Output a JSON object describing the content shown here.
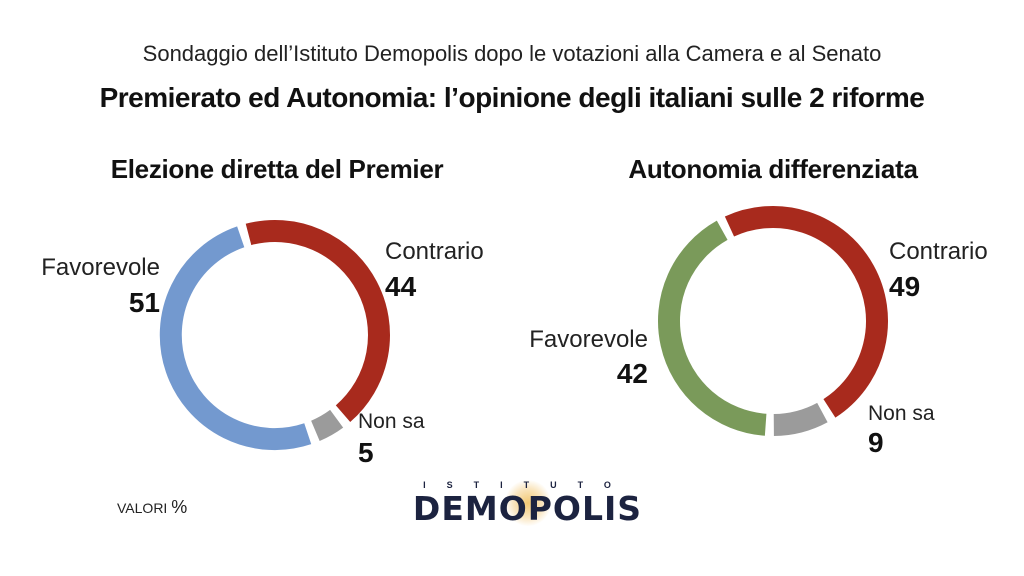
{
  "header": {
    "subtitle": "Sondaggio dell’Istituto Demopolis dopo le votazioni alla Camera e al Senato",
    "title": "Premierato ed Autonomia: l’opinione degli italiani sulle 2 riforme"
  },
  "chart_data": [
    {
      "type": "pie",
      "variant": "donut",
      "title": "Elezione diretta del Premier",
      "slices": [
        {
          "label": "Contrario",
          "value": 44,
          "color": "#a82a1d"
        },
        {
          "label": "Non sa",
          "value": 5,
          "color": "#9b9b9b"
        },
        {
          "label": "Favorevole",
          "value": 51,
          "color": "#7399cf"
        }
      ]
    },
    {
      "type": "pie",
      "variant": "donut",
      "title": "Autonomia differenziata",
      "slices": [
        {
          "label": "Contrario",
          "value": 49,
          "color": "#a82a1d"
        },
        {
          "label": "Non sa",
          "value": 9,
          "color": "#9b9b9b"
        },
        {
          "label": "Favorevole",
          "value": 42,
          "color": "#7a9a5a"
        }
      ]
    }
  ],
  "footer": {
    "note": "VALORI",
    "note_unit": "%",
    "logo_sup": "ISTITUTO",
    "logo_main": "DEMOPOLIS"
  }
}
